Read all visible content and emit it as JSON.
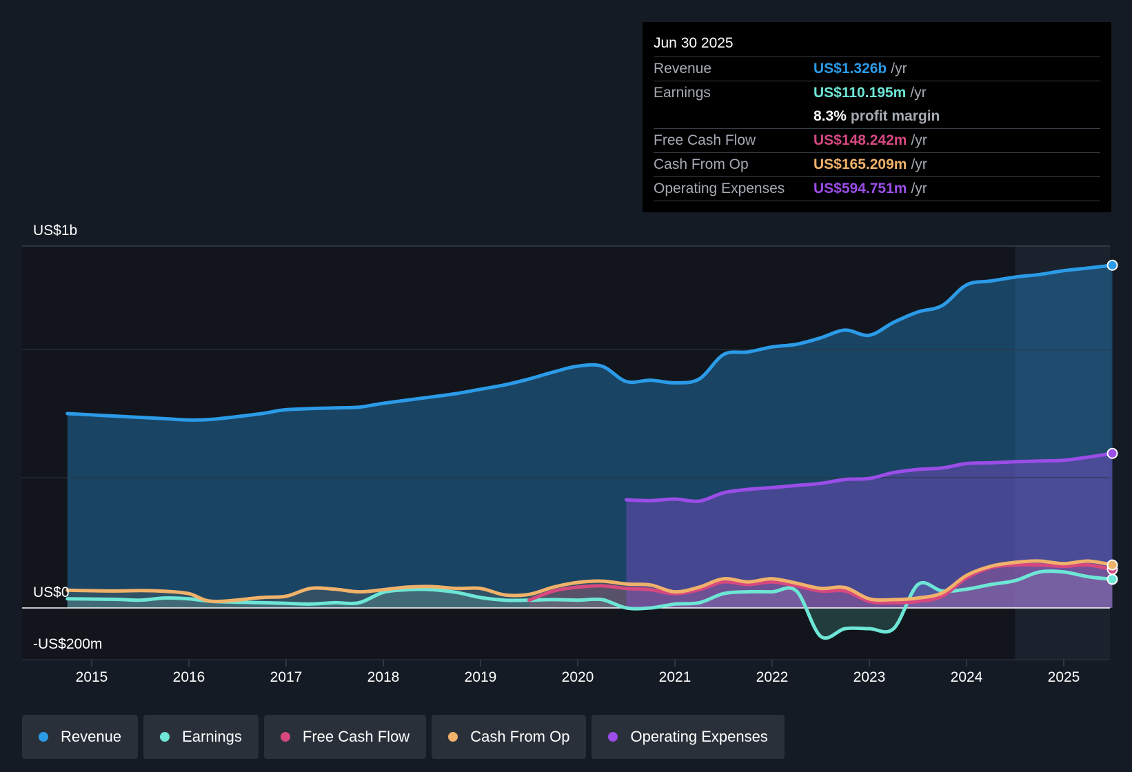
{
  "tooltip": {
    "date": "Jun 30 2025",
    "rows": [
      {
        "label": "Revenue",
        "value": "US$1.326b",
        "unit": "/yr",
        "color": "#2b9be8"
      },
      {
        "label": "Earnings",
        "value": "US$110.195m",
        "unit": "/yr",
        "color": "#6ee6d6"
      },
      {
        "margin_value": "8.3%",
        "margin_label": "profit margin"
      },
      {
        "label": "Free Cash Flow",
        "value": "US$148.242m",
        "unit": "/yr",
        "color": "#d6497f"
      },
      {
        "label": "Cash From Op",
        "value": "US$165.209m",
        "unit": "/yr",
        "color": "#f0b26a"
      },
      {
        "label": "Operating Expenses",
        "value": "US$594.751m",
        "unit": "/yr",
        "color": "#9b4de8"
      }
    ]
  },
  "legend": [
    {
      "label": "Revenue",
      "color": "#2b9be8"
    },
    {
      "label": "Earnings",
      "color": "#6ee6d6"
    },
    {
      "label": "Free Cash Flow",
      "color": "#d6497f"
    },
    {
      "label": "Cash From Op",
      "color": "#f0b26a"
    },
    {
      "label": "Operating Expenses",
      "color": "#9b4de8"
    }
  ],
  "chart_data": {
    "type": "line",
    "title": "",
    "xlabel": "",
    "ylabel": "",
    "xlim": [
      2014.55,
      2025.5
    ],
    "ylim": [
      -200,
      1400
    ],
    "y_axis_labels": [
      {
        "value": 1400,
        "label": "US$1b"
      },
      {
        "value": 0,
        "label": "US$0"
      },
      {
        "value": -200,
        "label": "-US$200m"
      }
    ],
    "gridlines": [
      1400,
      1000,
      500,
      0,
      -200
    ],
    "x_ticks": [
      {
        "value": 2015,
        "label": "2015"
      },
      {
        "value": 2016,
        "label": "2016"
      },
      {
        "value": 2017,
        "label": "2017"
      },
      {
        "value": 2018,
        "label": "2018"
      },
      {
        "value": 2019,
        "label": "2019"
      },
      {
        "value": 2020,
        "label": "2020"
      },
      {
        "value": 2021,
        "label": "2021"
      },
      {
        "value": 2022,
        "label": "2022"
      },
      {
        "value": 2023,
        "label": "2023"
      },
      {
        "value": 2024,
        "label": "2024"
      },
      {
        "value": 2025,
        "label": "2025"
      }
    ],
    "forecast_start": 2024.5,
    "series": [
      {
        "name": "Revenue",
        "color": "#2b9be8",
        "x": [
          2014.75,
          2015.25,
          2015.75,
          2016.0,
          2016.25,
          2016.75,
          2017.0,
          2017.5,
          2017.75,
          2018.0,
          2018.5,
          2018.75,
          2019.0,
          2019.25,
          2019.5,
          2019.75,
          2020.0,
          2020.25,
          2020.5,
          2020.75,
          2021.0,
          2021.25,
          2021.5,
          2021.75,
          2022.0,
          2022.25,
          2022.5,
          2022.75,
          2023.0,
          2023.25,
          2023.5,
          2023.75,
          2024.0,
          2024.25,
          2024.5,
          2024.75,
          2025.0,
          2025.25,
          2025.5
        ],
        "values": [
          750,
          740,
          730,
          725,
          728,
          750,
          765,
          772,
          775,
          790,
          815,
          828,
          845,
          862,
          885,
          912,
          935,
          935,
          875,
          880,
          870,
          885,
          980,
          990,
          1010,
          1020,
          1045,
          1075,
          1055,
          1105,
          1145,
          1170,
          1250,
          1265,
          1280,
          1290,
          1305,
          1315,
          1326
        ]
      },
      {
        "name": "Earnings",
        "color": "#6ee6d6",
        "x": [
          2014.75,
          2015.25,
          2015.5,
          2015.75,
          2016.0,
          2016.25,
          2016.75,
          2017.0,
          2017.25,
          2017.5,
          2017.75,
          2018.0,
          2018.25,
          2018.5,
          2018.75,
          2019.0,
          2019.25,
          2019.5,
          2019.75,
          2020.0,
          2020.25,
          2020.5,
          2020.75,
          2021.0,
          2021.25,
          2021.5,
          2021.75,
          2022.0,
          2022.25,
          2022.5,
          2022.75,
          2023.0,
          2023.25,
          2023.5,
          2023.75,
          2024.0,
          2024.25,
          2024.5,
          2024.75,
          2025.0,
          2025.25,
          2025.5
        ],
        "values": [
          35,
          33,
          30,
          38,
          35,
          25,
          20,
          18,
          15,
          20,
          20,
          60,
          70,
          70,
          60,
          40,
          30,
          30,
          32,
          30,
          32,
          0,
          0,
          15,
          20,
          55,
          62,
          62,
          65,
          -110,
          -80,
          -80,
          -80,
          90,
          65,
          72,
          90,
          105,
          138,
          138,
          120,
          110
        ]
      },
      {
        "name": "Free Cash Flow",
        "color": "#d6497f",
        "x": [
          2019.5,
          2019.75,
          2020.0,
          2020.25,
          2020.5,
          2020.75,
          2021.0,
          2021.25,
          2021.5,
          2021.75,
          2022.0,
          2022.25,
          2022.5,
          2022.75,
          2023.0,
          2023.25,
          2023.5,
          2023.75,
          2024.0,
          2024.25,
          2024.5,
          2024.75,
          2025.0,
          2025.25,
          2025.5
        ],
        "values": [
          30,
          65,
          80,
          85,
          75,
          70,
          55,
          70,
          100,
          90,
          100,
          85,
          65,
          65,
          25,
          20,
          25,
          45,
          115,
          155,
          165,
          165,
          160,
          165,
          148
        ]
      },
      {
        "name": "Cash From Op",
        "color": "#f0b26a",
        "x": [
          2014.75,
          2015.25,
          2015.5,
          2015.75,
          2016.0,
          2016.25,
          2016.75,
          2017.0,
          2017.25,
          2017.5,
          2017.75,
          2018.0,
          2018.25,
          2018.5,
          2018.75,
          2019.0,
          2019.25,
          2019.5,
          2019.75,
          2020.0,
          2020.25,
          2020.5,
          2020.75,
          2021.0,
          2021.25,
          2021.5,
          2021.75,
          2022.0,
          2022.25,
          2022.5,
          2022.75,
          2023.0,
          2023.25,
          2023.5,
          2023.75,
          2024.0,
          2024.25,
          2024.5,
          2024.75,
          2025.0,
          2025.25,
          2025.5
        ],
        "values": [
          68,
          65,
          67,
          64,
          55,
          25,
          40,
          45,
          75,
          72,
          62,
          70,
          80,
          82,
          75,
          75,
          50,
          52,
          80,
          98,
          103,
          92,
          88,
          62,
          80,
          112,
          100,
          112,
          95,
          75,
          78,
          35,
          32,
          38,
          58,
          125,
          160,
          175,
          180,
          170,
          180,
          165
        ]
      },
      {
        "name": "Operating Expenses",
        "color": "#9b4de8",
        "x": [
          2020.5,
          2020.75,
          2021.0,
          2021.25,
          2021.5,
          2021.75,
          2022.0,
          2022.25,
          2022.5,
          2022.75,
          2023.0,
          2023.25,
          2023.5,
          2023.75,
          2024.0,
          2024.25,
          2024.5,
          2024.75,
          2025.0,
          2025.25,
          2025.5
        ],
        "values": [
          415,
          412,
          418,
          410,
          442,
          455,
          462,
          470,
          478,
          493,
          497,
          520,
          532,
          538,
          555,
          558,
          562,
          565,
          568,
          580,
          594.751
        ]
      }
    ]
  }
}
